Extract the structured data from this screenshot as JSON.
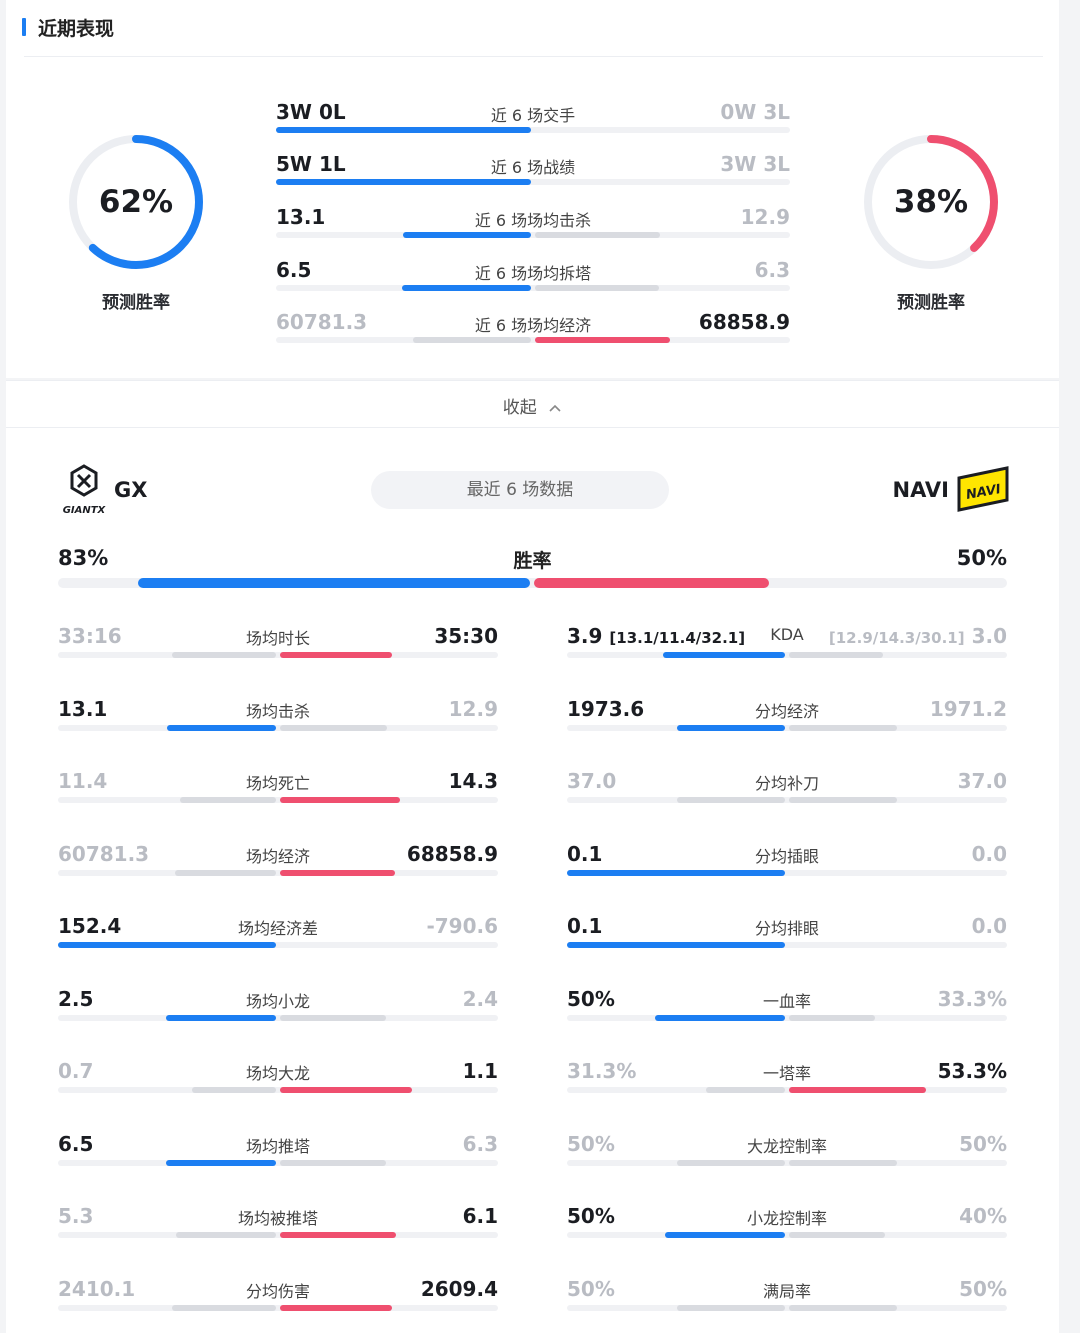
{
  "section": {
    "title": "近期表现"
  },
  "left_team": {
    "name": "GX",
    "logo_icon": "giantx-logo-icon",
    "logo_text": "GIANTX",
    "prediction_pct": "62%",
    "prediction_value": 0.62,
    "prediction_label": "预测胜率"
  },
  "right_team": {
    "name": "NAVI",
    "logo_icon": "navi-logo-icon",
    "logo_text": "NAVI",
    "prediction_pct": "38%",
    "prediction_value": 0.38,
    "prediction_label": "预测胜率"
  },
  "top_stats": [
    {
      "label": "近 6 场交手",
      "left": "3W 0L",
      "right": "0W 3L",
      "left_strong": true,
      "left_share": 1.0,
      "right_share": 0.0
    },
    {
      "label": "近 6 场战绩",
      "left": "5W 1L",
      "right": "3W 3L",
      "left_strong": true,
      "left_share": 1.0,
      "right_share": 0.0
    },
    {
      "label": "近 6 场场均击杀",
      "left": "13.1",
      "right": "12.9",
      "left_strong": true,
      "left_share": 0.5039,
      "right_share": 0.4961
    },
    {
      "label": "近 6 场场均拆塔",
      "left": "6.5",
      "right": "6.3",
      "left_strong": true,
      "left_share": 0.5078,
      "right_share": 0.4922
    },
    {
      "label": "近 6 场场均经济",
      "left": "60781.3",
      "right": "68858.9",
      "left_strong": false,
      "left_share": 0.4688,
      "right_share": 0.5312
    }
  ],
  "collapse": {
    "label": "收起"
  },
  "recent": {
    "pill": "最近 6 场数据"
  },
  "winrate": {
    "label": "胜率",
    "left": "83%",
    "right": "50%",
    "left_value": 0.83,
    "right_value": 0.5
  },
  "stats_left": [
    {
      "label": "场均时长",
      "left": "33:16",
      "right": "35:30",
      "left_strong": false,
      "left_share": 0.484,
      "right_share": 0.516
    },
    {
      "label": "场均击杀",
      "left": "13.1",
      "right": "12.9",
      "left_strong": true,
      "left_share": 0.504,
      "right_share": 0.496
    },
    {
      "label": "场均死亡",
      "left": "11.4",
      "right": "14.3",
      "left_strong": false,
      "left_share": 0.444,
      "right_share": 0.556
    },
    {
      "label": "场均经济",
      "left": "60781.3",
      "right": "68858.9",
      "left_strong": false,
      "left_share": 0.469,
      "right_share": 0.531
    },
    {
      "label": "场均经济差",
      "left": "152.4",
      "right": "-790.6",
      "left_strong": true,
      "left_share": 1.0,
      "right_share": 0.0
    },
    {
      "label": "场均小龙",
      "left": "2.5",
      "right": "2.4",
      "left_strong": true,
      "left_share": 0.51,
      "right_share": 0.49
    },
    {
      "label": "场均大龙",
      "left": "0.7",
      "right": "1.1",
      "left_strong": false,
      "left_share": 0.389,
      "right_share": 0.611
    },
    {
      "label": "场均推塔",
      "left": "6.5",
      "right": "6.3",
      "left_strong": true,
      "left_share": 0.508,
      "right_share": 0.492
    },
    {
      "label": "场均被推塔",
      "left": "5.3",
      "right": "6.1",
      "left_strong": false,
      "left_share": 0.465,
      "right_share": 0.535
    },
    {
      "label": "分均伤害",
      "left": "2410.1",
      "right": "2609.4",
      "left_strong": false,
      "left_share": 0.48,
      "right_share": 0.52
    }
  ],
  "stats_right": [
    {
      "label": "KDA",
      "left": "3.9",
      "left_detail": "[13.1/11.4/32.1]",
      "right": "3.0",
      "right_detail": "[12.9/14.3/30.1]",
      "left_strong": true,
      "left_share": 0.565,
      "right_share": 0.435
    },
    {
      "label": "分均经济",
      "left": "1973.6",
      "right": "1971.2",
      "left_strong": true,
      "left_share": 0.5,
      "right_share": 0.5
    },
    {
      "label": "分均补刀",
      "left": "37.0",
      "right": "37.0",
      "left_strong": false,
      "right_strong": false,
      "left_share": 0.5,
      "right_share": 0.5
    },
    {
      "label": "分均插眼",
      "left": "0.1",
      "right": "0.0",
      "left_strong": true,
      "left_share": 1.0,
      "right_share": 0.0
    },
    {
      "label": "分均排眼",
      "left": "0.1",
      "right": "0.0",
      "left_strong": true,
      "left_share": 1.0,
      "right_share": 0.0
    },
    {
      "label": "一血率",
      "left": "50%",
      "right": "33.3%",
      "left_strong": true,
      "left_share": 0.6,
      "right_share": 0.4
    },
    {
      "label": "一塔率",
      "left": "31.3%",
      "right": "53.3%",
      "left_strong": false,
      "left_share": 0.37,
      "right_share": 0.63
    },
    {
      "label": "大龙控制率",
      "left": "50%",
      "right": "50%",
      "left_strong": false,
      "right_strong": false,
      "left_share": 0.5,
      "right_share": 0.5
    },
    {
      "label": "小龙控制率",
      "left": "50%",
      "right": "40%",
      "left_strong": true,
      "left_share": 0.556,
      "right_share": 0.444
    },
    {
      "label": "满局率",
      "left": "50%",
      "right": "50%",
      "left_strong": false,
      "right_strong": false,
      "left_share": 0.5,
      "right_share": 0.5
    }
  ],
  "colors": {
    "blue": "#1c7ef2",
    "red": "#ef4f6f",
    "gray": "#d9dbe0",
    "track": "#f0f1f4",
    "navi_yellow": "#ffe500"
  }
}
